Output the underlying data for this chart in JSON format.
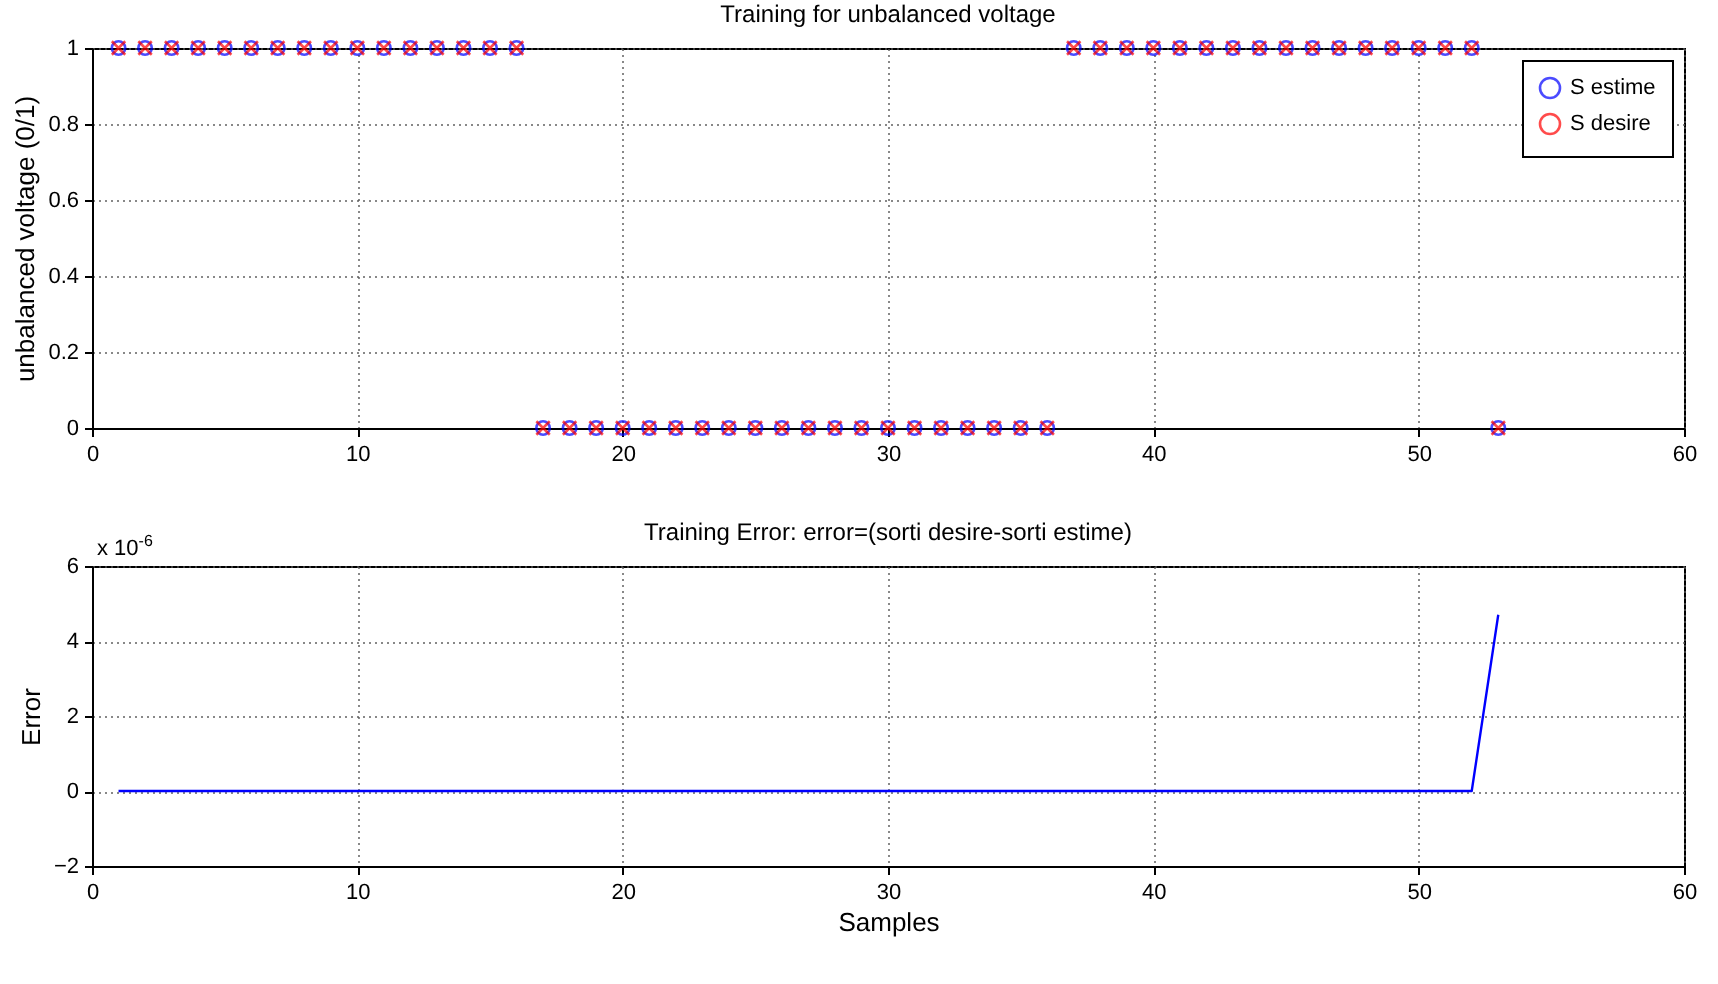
{
  "chart_data": [
    {
      "type": "scatter",
      "title": "Training for unbalanced voltage",
      "ylabel": "unbalanced voltage (0/1)",
      "x": [
        1,
        2,
        3,
        4,
        5,
        6,
        7,
        8,
        9,
        10,
        11,
        12,
        13,
        14,
        15,
        16,
        17,
        18,
        19,
        20,
        21,
        22,
        23,
        24,
        25,
        26,
        27,
        28,
        29,
        30,
        31,
        32,
        33,
        34,
        35,
        36,
        37,
        38,
        39,
        40,
        41,
        42,
        43,
        44,
        45,
        46,
        47,
        48,
        49,
        50,
        51,
        52,
        53
      ],
      "series": [
        {
          "name": "S estime",
          "color": "#0000ff",
          "marker": "circle",
          "values": [
            1,
            1,
            1,
            1,
            1,
            1,
            1,
            1,
            1,
            1,
            1,
            1,
            1,
            1,
            1,
            1,
            0,
            0,
            0,
            0,
            0,
            0,
            0,
            0,
            0,
            0,
            0,
            0,
            0,
            0,
            0,
            0,
            0,
            0,
            0,
            0,
            1,
            1,
            1,
            1,
            1,
            1,
            1,
            1,
            1,
            1,
            1,
            1,
            1,
            1,
            1,
            1,
            0
          ]
        },
        {
          "name": "S desire",
          "color": "#ff0000",
          "marker": "cross",
          "values": [
            1,
            1,
            1,
            1,
            1,
            1,
            1,
            1,
            1,
            1,
            1,
            1,
            1,
            1,
            1,
            1,
            0,
            0,
            0,
            0,
            0,
            0,
            0,
            0,
            0,
            0,
            0,
            0,
            0,
            0,
            0,
            0,
            0,
            0,
            0,
            0,
            1,
            1,
            1,
            1,
            1,
            1,
            1,
            1,
            1,
            1,
            1,
            1,
            1,
            1,
            1,
            1,
            0
          ]
        }
      ],
      "xlim": [
        0,
        60
      ],
      "xticks": [
        0,
        10,
        20,
        30,
        40,
        50,
        60
      ],
      "ylim": [
        0,
        1
      ],
      "yticks": [
        0,
        0.2,
        0.4,
        0.6,
        0.8,
        1
      ],
      "grid": true,
      "legend": "top right"
    },
    {
      "type": "line",
      "title": "Training Error: error=(sorti desire-sorti estime)",
      "xlabel": "Samples",
      "ylabel": "Error",
      "annotations": [
        "x 10$^{-6}$"
      ],
      "x": [
        1,
        52,
        53
      ],
      "series": [
        {
          "color": "#0000ff",
          "values": [
            0,
            0,
            4.7
          ]
        }
      ],
      "xlim": [
        0,
        60
      ],
      "xticks": [
        0,
        10,
        20,
        30,
        40,
        50,
        60
      ],
      "ylim": [
        -2,
        6
      ],
      "yticks": [
        -2,
        0,
        2,
        4,
        6
      ],
      "grid": true,
      "line_style": "solid",
      "marker": "none"
    }
  ]
}
